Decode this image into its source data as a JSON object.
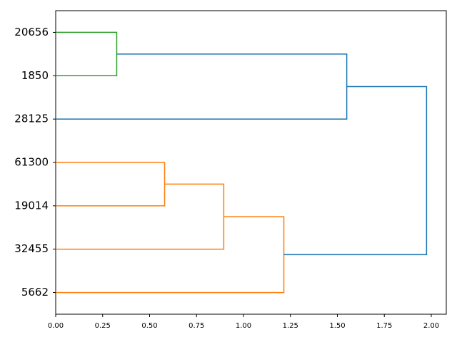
{
  "chart_data": {
    "type": "dendrogram",
    "orientation": "left",
    "categories": [
      "20656",
      "1850",
      "28125",
      "61300",
      "19014",
      "32455",
      "5662"
    ],
    "links": [
      {
        "children": [
          0,
          1
        ],
        "height": 0.325,
        "color": "#2ca02c"
      },
      {
        "children": [
          3,
          4
        ],
        "height": 0.58,
        "color": "#ff7f0e"
      },
      {
        "children": [
          8,
          5
        ],
        "height": 0.895,
        "color": "#ff7f0e"
      },
      {
        "children": [
          9,
          6
        ],
        "height": 1.215,
        "color": "#ff7f0e"
      },
      {
        "children": [
          7,
          2
        ],
        "height": 1.55,
        "color": "#1f77b4"
      },
      {
        "children": [
          11,
          10
        ],
        "height": 1.975,
        "color": "#1f77b4"
      }
    ],
    "xlim": [
      0,
      2.08
    ],
    "xticks": [
      {
        "value": 0,
        "label": "0.00"
      },
      {
        "value": 0.25,
        "label": "0.25"
      },
      {
        "value": 0.5,
        "label": "0.50"
      },
      {
        "value": 0.75,
        "label": "0.75"
      },
      {
        "value": 1,
        "label": "1.00"
      },
      {
        "value": 1.25,
        "label": "1.25"
      },
      {
        "value": 1.5,
        "label": "1.50"
      },
      {
        "value": 1.75,
        "label": "1.75"
      },
      {
        "value": 2,
        "label": "2.00"
      }
    ],
    "grid": false
  }
}
